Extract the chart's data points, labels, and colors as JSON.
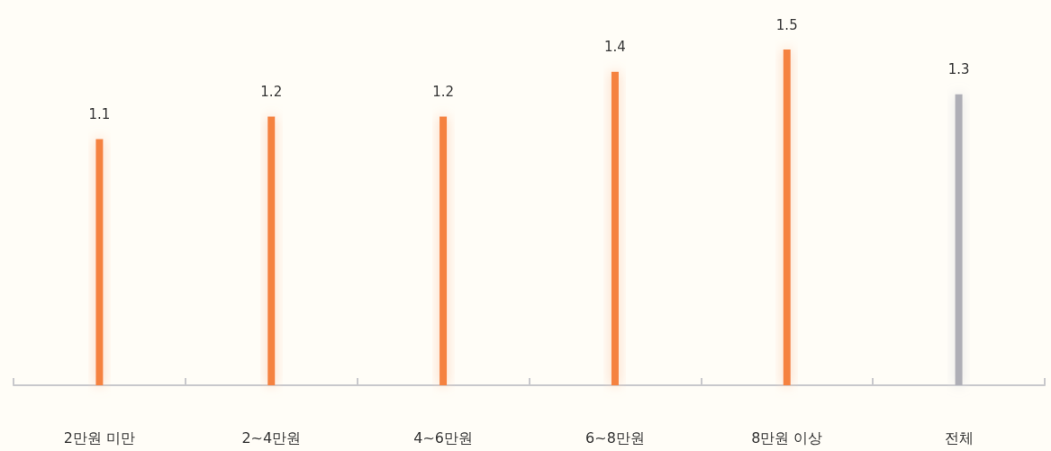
{
  "chart_data": {
    "type": "bar",
    "categories": [
      "2만원 미만",
      "2~4만원",
      "4~6만원",
      "6~8만원",
      "8만원 이상",
      "전체"
    ],
    "values": [
      1.1,
      1.2,
      1.2,
      1.4,
      1.5,
      1.3
    ],
    "colors": [
      "#f5823f",
      "#f5823f",
      "#f5823f",
      "#f5823f",
      "#f5823f",
      "#aeaeb6"
    ],
    "ylim": [
      0,
      1.5
    ],
    "data_labels": true
  }
}
